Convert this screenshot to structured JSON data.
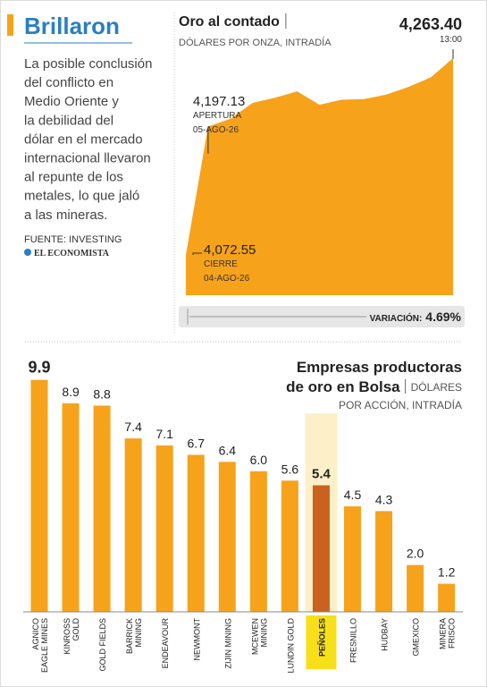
{
  "header": {
    "title": "Brillaron",
    "body": [
      "La posible conclusión",
      "del conflicto en",
      "Medio Oriente y",
      "la debilidad del",
      "dólar en el mercado",
      "internacional llevaron",
      "al repunte de los",
      "metales, lo que jaló",
      "a las mineras."
    ],
    "source": "FUENTE: INVESTING",
    "logo": "EL ECONOMISTA"
  },
  "chart_data": [
    {
      "type": "area",
      "title": "Oro al contado",
      "subtitle": "DÓLARES POR ONZA, INTRADÍA",
      "color": "#f7a21b",
      "values": [
        4072.55,
        4197.13,
        4204.6,
        4220.0,
        4225.0,
        4231.2,
        4218.2,
        4223.1,
        4223.7,
        4228.1,
        4235.5,
        4244.8,
        4263.4
      ],
      "ylim": [
        4033.5,
        4263.4
      ],
      "annotations": [
        {
          "label": "4,263.40",
          "lines": [
            "13:00"
          ]
        },
        {
          "label": "4,197.13",
          "lines": [
            "APERTURA",
            "05-AGO-26"
          ]
        },
        {
          "label": "4,072.55",
          "lines": [
            "CIERRE",
            "04-AGO-26"
          ]
        }
      ],
      "variation_label": "VARIACIÓN:",
      "variation": "4.69%"
    },
    {
      "type": "bar",
      "title": [
        "Empresas productoras",
        "de oro en Bolsa"
      ],
      "subtitle": [
        "DÓLARES",
        "POR ACCIÓN, INTRADÍA"
      ],
      "color": "#f7a21b",
      "highlight_color": "#c9621f",
      "highlight_index": 9,
      "categories": [
        [
          "AGNICO",
          "EAGLE MINES"
        ],
        [
          "KINROSS",
          "GOLD"
        ],
        [
          "GOLD FIELDS"
        ],
        [
          "BARRICK",
          "MINING"
        ],
        [
          "ENDEAVOUR"
        ],
        [
          "NEWMONT"
        ],
        [
          "ZIJIN MINING"
        ],
        [
          "MCEWEN",
          "MINING"
        ],
        [
          "LUNDIN GOLD"
        ],
        [
          "PEÑOLES"
        ],
        [
          "FRESNILLO"
        ],
        [
          "HUDBAY"
        ],
        [
          "GMEXICO"
        ],
        [
          "MINERA",
          "FRISCO"
        ]
      ],
      "values": [
        9.9,
        8.9,
        8.8,
        7.4,
        7.1,
        6.7,
        6.4,
        6.0,
        5.6,
        5.4,
        4.5,
        4.3,
        2.0,
        1.2
      ],
      "value_labels": [
        "9.9",
        "8.9",
        "8.8",
        "7.4",
        "7.1",
        "6.7",
        "6.4",
        "6.0",
        "5.6",
        "5.4",
        "4.5",
        "4.3",
        "2.0",
        "1.2"
      ]
    }
  ]
}
